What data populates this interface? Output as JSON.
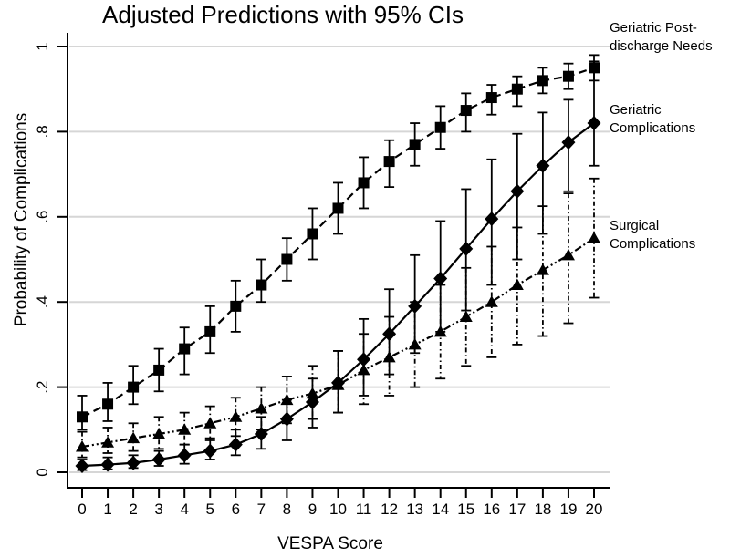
{
  "title": "Adjusted Predictions with 95% CIs",
  "chart_data": {
    "type": "line",
    "title": "Adjusted Predictions with 95% CIs",
    "xlabel": "VESPA Score",
    "ylabel": "Probability of Complications",
    "error_bars": "95% CI",
    "grid": "horizontal",
    "legend_position": "right-outside",
    "x": [
      0,
      1,
      2,
      3,
      4,
      5,
      6,
      7,
      8,
      9,
      10,
      11,
      12,
      13,
      14,
      15,
      16,
      17,
      18,
      19,
      20
    ],
    "xtick_labels": [
      "0",
      "1",
      "2",
      "3",
      "4",
      "5",
      "6",
      "7",
      "8",
      "9",
      "10",
      "11",
      "12",
      "13",
      "14",
      "15",
      "16",
      "17",
      "18",
      "19",
      "20"
    ],
    "ytick_values": [
      0,
      0.2,
      0.4,
      0.6,
      0.8,
      1
    ],
    "ytick_labels": [
      "0",
      ".2",
      ".4",
      ".6",
      ".8",
      "1"
    ],
    "ylim": [
      0,
      1
    ],
    "colors": {
      "foreground": "#000000",
      "grid": "#d6d6d6",
      "background": "#ffffff"
    },
    "series": [
      {
        "name": "Geriatric Post-discharge Needs",
        "marker": "square",
        "line_style": "dashed",
        "ci_line_style": "solid",
        "values": [
          0.13,
          0.16,
          0.2,
          0.24,
          0.29,
          0.33,
          0.39,
          0.44,
          0.5,
          0.56,
          0.62,
          0.68,
          0.73,
          0.77,
          0.81,
          0.85,
          0.88,
          0.9,
          0.92,
          0.93,
          0.95
        ],
        "ci_low": [
          0.1,
          0.12,
          0.16,
          0.19,
          0.23,
          0.28,
          0.33,
          0.4,
          0.45,
          0.5,
          0.56,
          0.62,
          0.67,
          0.72,
          0.76,
          0.8,
          0.84,
          0.86,
          0.89,
          0.9,
          0.92
        ],
        "ci_high": [
          0.18,
          0.21,
          0.25,
          0.29,
          0.34,
          0.39,
          0.45,
          0.5,
          0.55,
          0.62,
          0.68,
          0.74,
          0.78,
          0.82,
          0.86,
          0.89,
          0.91,
          0.93,
          0.95,
          0.96,
          0.98
        ]
      },
      {
        "name": "Geriatric Complications",
        "marker": "diamond",
        "line_style": "solid",
        "ci_line_style": "solid",
        "values": [
          0.015,
          0.018,
          0.022,
          0.03,
          0.04,
          0.05,
          0.065,
          0.09,
          0.125,
          0.165,
          0.21,
          0.265,
          0.325,
          0.39,
          0.455,
          0.525,
          0.595,
          0.66,
          0.72,
          0.775,
          0.82
        ],
        "ci_low": [
          0.005,
          0.007,
          0.01,
          0.015,
          0.02,
          0.03,
          0.04,
          0.055,
          0.075,
          0.105,
          0.14,
          0.18,
          0.23,
          0.28,
          0.33,
          0.38,
          0.44,
          0.5,
          0.56,
          0.66,
          0.72
        ],
        "ci_high": [
          0.03,
          0.035,
          0.04,
          0.05,
          0.065,
          0.08,
          0.1,
          0.13,
          0.17,
          0.22,
          0.285,
          0.36,
          0.43,
          0.51,
          0.59,
          0.665,
          0.735,
          0.795,
          0.845,
          0.875,
          0.965
        ]
      },
      {
        "name": "Surgical Complications",
        "marker": "triangle",
        "line_style": "dash-dot-dot",
        "ci_line_style": "dash-dot",
        "values": [
          0.06,
          0.07,
          0.08,
          0.09,
          0.1,
          0.115,
          0.13,
          0.15,
          0.17,
          0.185,
          0.205,
          0.24,
          0.27,
          0.3,
          0.33,
          0.365,
          0.4,
          0.44,
          0.475,
          0.51,
          0.55
        ],
        "ci_low": [
          0.035,
          0.045,
          0.05,
          0.055,
          0.065,
          0.075,
          0.085,
          0.1,
          0.115,
          0.125,
          0.14,
          0.16,
          0.18,
          0.2,
          0.22,
          0.25,
          0.27,
          0.3,
          0.32,
          0.35,
          0.41
        ],
        "ci_high": [
          0.095,
          0.105,
          0.115,
          0.13,
          0.14,
          0.155,
          0.175,
          0.2,
          0.225,
          0.25,
          0.285,
          0.325,
          0.365,
          0.4,
          0.44,
          0.48,
          0.53,
          0.575,
          0.625,
          0.655,
          0.69
        ]
      }
    ]
  }
}
